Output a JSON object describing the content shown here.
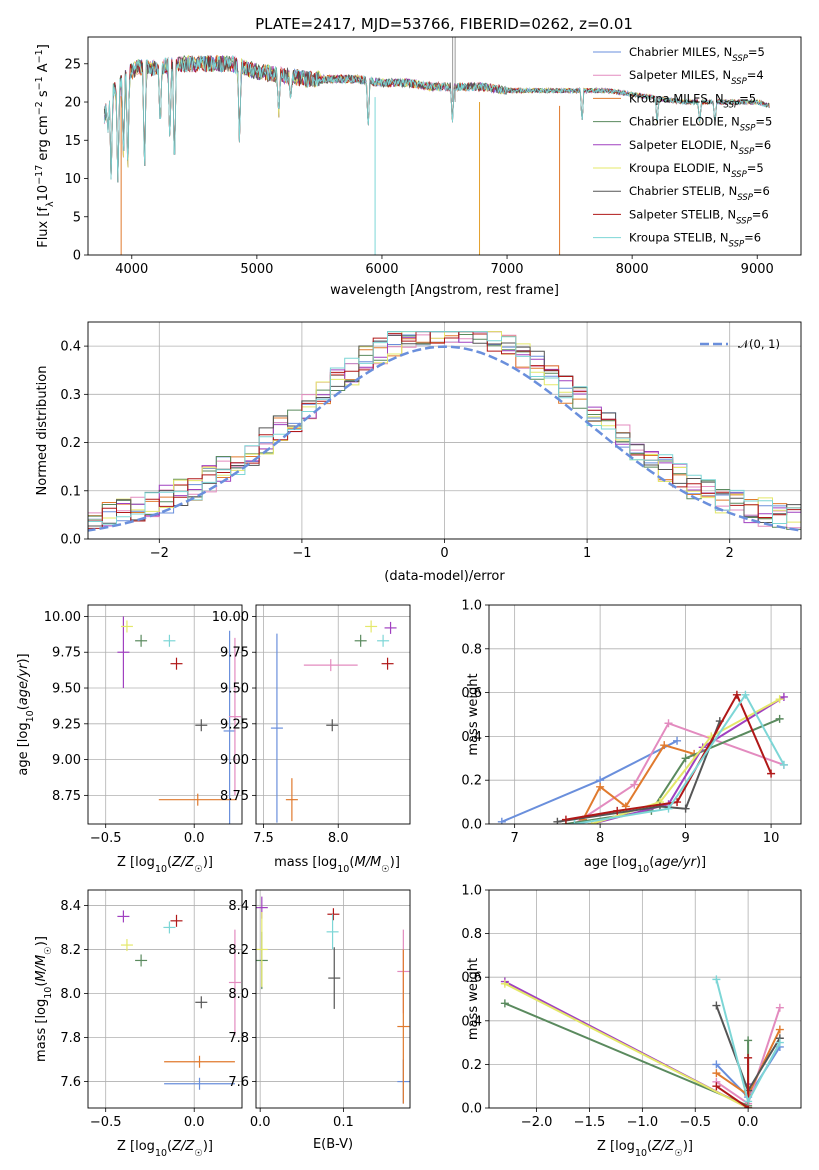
{
  "figure_title": "PLATE=2417, MJD=53766, FIBERID=0262, z=0.01",
  "colors": {
    "Chabrier MILES": "#6a8fdc",
    "Salpeter MILES": "#e38bbf",
    "Kroupa MILES": "#e07a2e",
    "Chabrier ELODIE": "#5a8a5e",
    "Salpeter ELODIE": "#a040c0",
    "Kroupa ELODIE": "#e4e86a",
    "Chabrier STELIB": "#555555",
    "Salpeter STELIB": "#b01818",
    "Kroupa STELIB": "#7dd6d6"
  },
  "chart_data": [
    {
      "id": "spectrum",
      "type": "line",
      "title": "PLATE=2417, MJD=53766, FIBERID=0262, z=0.01",
      "xlabel": "wavelength [Angstrom, rest frame]",
      "ylabel": "Flux [f_λ 10^-17 erg cm^-2 s^-1 A^-1]",
      "xlim": [
        3650,
        9350
      ],
      "ylim": [
        0,
        28.5
      ],
      "xticks": [
        4000,
        5000,
        6000,
        7000,
        8000,
        9000
      ],
      "yticks": [
        0,
        5,
        10,
        15,
        20,
        25
      ],
      "legend_position": "top-right",
      "legend": [
        {
          "base": "Chabrier MILES, N",
          "sub": "SSP",
          "tail": "=5"
        },
        {
          "base": "Salpeter MILES, N",
          "sub": "SSP",
          "tail": "=4"
        },
        {
          "base": "Kroupa MILES, N",
          "sub": "SSP",
          "tail": "=5"
        },
        {
          "base": "Chabrier ELODIE, N",
          "sub": "SSP",
          "tail": "=5"
        },
        {
          "base": "Salpeter ELODIE, N",
          "sub": "SSP",
          "tail": "=6"
        },
        {
          "base": "Kroupa ELODIE, N",
          "sub": "SSP",
          "tail": "=5"
        },
        {
          "base": "Chabrier STELIB, N",
          "sub": "SSP",
          "tail": "=6"
        },
        {
          "base": "Salpeter STELIB, N",
          "sub": "SSP",
          "tail": "=6"
        },
        {
          "base": "Kroupa STELIB, N",
          "sub": "SSP",
          "tail": "=6"
        }
      ],
      "envelope": [
        [
          3780,
          18
        ],
        [
          3820,
          21
        ],
        [
          3880,
          22
        ],
        [
          3950,
          23.5
        ],
        [
          4050,
          24.5
        ],
        [
          4200,
          24.5
        ],
        [
          4400,
          25
        ],
        [
          4600,
          25
        ],
        [
          4800,
          25
        ],
        [
          5000,
          24
        ],
        [
          5200,
          23.5
        ],
        [
          5400,
          23
        ],
        [
          5600,
          23
        ],
        [
          5800,
          23
        ],
        [
          6000,
          22.5
        ],
        [
          6200,
          22.5
        ],
        [
          6400,
          22
        ],
        [
          6600,
          22
        ],
        [
          6800,
          22
        ],
        [
          7000,
          21.5
        ],
        [
          7200,
          21.5
        ],
        [
          7400,
          21.5
        ],
        [
          7600,
          21.5
        ],
        [
          7800,
          21.5
        ],
        [
          8000,
          21
        ],
        [
          8200,
          20.5
        ],
        [
          8400,
          20
        ],
        [
          8600,
          20
        ],
        [
          8800,
          20
        ],
        [
          9000,
          20
        ],
        [
          9100,
          19.5
        ]
      ],
      "absorption_lines": [
        [
          3810,
          16
        ],
        [
          3835,
          9
        ],
        [
          3889,
          8.5
        ],
        [
          3934,
          12
        ],
        [
          3968,
          10.5
        ],
        [
          4102,
          9.5
        ],
        [
          4227,
          16
        ],
        [
          4304,
          14
        ],
        [
          4341,
          10
        ],
        [
          4861,
          14
        ],
        [
          5175,
          18
        ],
        [
          5270,
          20
        ],
        [
          5890,
          16
        ],
        [
          6563,
          17
        ],
        [
          7600,
          17
        ],
        [
          8200,
          17
        ],
        [
          8540,
          17
        ],
        [
          8662,
          17
        ]
      ],
      "spikes": [
        [
          3915,
          0
        ],
        [
          5945,
          0
        ],
        [
          6565,
          28.5
        ],
        [
          6585,
          28.5
        ],
        [
          6780,
          0
        ],
        [
          7420,
          0
        ]
      ]
    },
    {
      "id": "residuals",
      "type": "histogram",
      "xlabel": "(data-model)/error",
      "ylabel": "Normed distribution",
      "xlim": [
        -2.5,
        2.5
      ],
      "ylim": [
        0,
        0.45
      ],
      "xticks": [
        -2,
        -1,
        0,
        1,
        2
      ],
      "yticks": [
        0.0,
        0.1,
        0.2,
        0.3,
        0.4
      ],
      "legend_position": "top-right",
      "reference": {
        "label": "𝒩(0, 1)",
        "mean": 0,
        "sigma": 1,
        "style": "dashed",
        "color": "#6a8fdc"
      },
      "bin_width": 0.1
    },
    {
      "id": "age_vs_Z",
      "type": "errorbar",
      "xlabel": "Z [log10(Z/Z☉)]",
      "ylabel": "age [log10(age/yr)]",
      "xlim": [
        -0.6,
        0.27
      ],
      "ylim": [
        8.55,
        10.08
      ],
      "xticks": [
        -0.5,
        0.0
      ],
      "yticks": [
        8.75,
        9.0,
        9.25,
        9.5,
        9.75,
        10.0
      ],
      "points": [
        {
          "model": "Chabrier MILES",
          "x": 0.2,
          "y": 9.2,
          "xerr": 0.0,
          "yerr": 0.7
        },
        {
          "model": "Salpeter MILES",
          "x": 0.23,
          "y": 9.3,
          "xerr": 0.0,
          "yerr": 0.55
        },
        {
          "model": "Kroupa MILES",
          "x": 0.02,
          "y": 8.72,
          "xerr": 0.22,
          "yerr": 0.0
        },
        {
          "model": "Chabrier ELODIE",
          "x": -0.3,
          "y": 9.83,
          "xerr": 0.0,
          "yerr": 0.0
        },
        {
          "model": "Salpeter ELODIE",
          "x": -0.4,
          "y": 9.75,
          "xerr": 0.0,
          "yerr": 0.25
        },
        {
          "model": "Kroupa ELODIE",
          "x": -0.38,
          "y": 9.93,
          "xerr": 0.0,
          "yerr": 0.0
        },
        {
          "model": "Chabrier STELIB",
          "x": 0.04,
          "y": 9.24,
          "xerr": 0.0,
          "yerr": 0.0
        },
        {
          "model": "Salpeter STELIB",
          "x": -0.1,
          "y": 9.67,
          "xerr": 0.0,
          "yerr": 0.0
        },
        {
          "model": "Kroupa STELIB",
          "x": -0.14,
          "y": 9.83,
          "xerr": 0.0,
          "yerr": 0.0
        }
      ]
    },
    {
      "id": "age_vs_mass",
      "type": "errorbar",
      "xlabel": "mass [log10(M/M☉)]",
      "ylabel": "",
      "xlim": [
        7.45,
        8.48
      ],
      "ylim": [
        8.55,
        10.08
      ],
      "xticks": [
        7.5,
        8.0
      ],
      "yticks": [
        8.75,
        9.0,
        9.25,
        9.5,
        9.75,
        10.0
      ],
      "points": [
        {
          "model": "Chabrier MILES",
          "x": 7.59,
          "y": 9.22,
          "xerr": 0.0,
          "yerr": 0.66
        },
        {
          "model": "Salpeter MILES",
          "x": 7.95,
          "y": 9.66,
          "xerr": 0.18,
          "yerr": 0.0
        },
        {
          "model": "Kroupa MILES",
          "x": 7.69,
          "y": 8.72,
          "xerr": 0.0,
          "yerr": 0.15
        },
        {
          "model": "Chabrier ELODIE",
          "x": 8.15,
          "y": 9.83,
          "xerr": 0.0,
          "yerr": 0.0
        },
        {
          "model": "Salpeter ELODIE",
          "x": 8.35,
          "y": 9.92,
          "xerr": 0.0,
          "yerr": 0.0
        },
        {
          "model": "Kroupa ELODIE",
          "x": 8.22,
          "y": 9.93,
          "xerr": 0.0,
          "yerr": 0.0
        },
        {
          "model": "Chabrier STELIB",
          "x": 7.96,
          "y": 9.24,
          "xerr": 0.0,
          "yerr": 0.0
        },
        {
          "model": "Salpeter STELIB",
          "x": 8.33,
          "y": 9.67,
          "xerr": 0.0,
          "yerr": 0.0
        },
        {
          "model": "Kroupa STELIB",
          "x": 8.3,
          "y": 9.83,
          "xerr": 0.0,
          "yerr": 0.0
        }
      ]
    },
    {
      "id": "weight_vs_age",
      "type": "line",
      "xlabel": "age [log10(age/yr)]",
      "ylabel": "mass weight",
      "xlim": [
        6.7,
        10.35
      ],
      "ylim": [
        0,
        1.0
      ],
      "xticks": [
        7,
        8,
        9,
        10
      ],
      "yticks": [
        0.0,
        0.2,
        0.4,
        0.6,
        0.8,
        1.0
      ],
      "series": [
        {
          "model": "Chabrier MILES",
          "x": [
            6.85,
            8.0,
            8.9
          ],
          "y": [
            0.01,
            0.2,
            0.38
          ]
        },
        {
          "model": "Salpeter MILES",
          "x": [
            7.7,
            8.4,
            8.8,
            10.15
          ],
          "y": [
            0.0,
            0.18,
            0.46,
            0.27
          ]
        },
        {
          "model": "Kroupa MILES",
          "x": [
            7.8,
            8.0,
            8.3,
            8.75,
            9.1
          ],
          "y": [
            0.02,
            0.17,
            0.08,
            0.36,
            0.32
          ]
        },
        {
          "model": "Chabrier ELODIE",
          "x": [
            7.6,
            8.6,
            9.0,
            10.1
          ],
          "y": [
            0.0,
            0.06,
            0.3,
            0.48
          ]
        },
        {
          "model": "Salpeter ELODIE",
          "x": [
            7.9,
            8.8,
            9.2,
            10.15
          ],
          "y": [
            0.0,
            0.09,
            0.35,
            0.58
          ]
        },
        {
          "model": "Kroupa ELODIE",
          "x": [
            7.9,
            8.7,
            9.3,
            10.1
          ],
          "y": [
            0.0,
            0.1,
            0.4,
            0.57
          ]
        },
        {
          "model": "Chabrier STELIB",
          "x": [
            7.5,
            8.7,
            9.0,
            9.4
          ],
          "y": [
            0.01,
            0.08,
            0.07,
            0.47
          ]
        },
        {
          "model": "Salpeter STELIB",
          "x": [
            7.6,
            8.2,
            8.9,
            9.6,
            10.0
          ],
          "y": [
            0.02,
            0.06,
            0.1,
            0.59,
            0.23
          ]
        },
        {
          "model": "Kroupa STELIB",
          "x": [
            7.7,
            8.8,
            9.7,
            10.15
          ],
          "y": [
            0.0,
            0.07,
            0.59,
            0.27
          ]
        }
      ]
    },
    {
      "id": "mass_vs_Z",
      "type": "errorbar",
      "xlabel": "Z [log10(Z/Z☉)]",
      "ylabel": "mass [log10(M/M☉)]",
      "xlim": [
        -0.6,
        0.27
      ],
      "ylim": [
        7.48,
        8.47
      ],
      "xticks": [
        -0.5,
        0.0
      ],
      "yticks": [
        7.6,
        7.8,
        8.0,
        8.2,
        8.4
      ],
      "points": [
        {
          "model": "Chabrier MILES",
          "x": 0.03,
          "y": 7.59,
          "xerr": 0.2,
          "yerr": 0.0
        },
        {
          "model": "Salpeter MILES",
          "x": 0.23,
          "y": 8.05,
          "xerr": 0.0,
          "yerr": 0.24
        },
        {
          "model": "Kroupa MILES",
          "x": 0.03,
          "y": 7.69,
          "xerr": 0.2,
          "yerr": 0.0
        },
        {
          "model": "Chabrier ELODIE",
          "x": -0.3,
          "y": 8.15,
          "xerr": 0.0,
          "yerr": 0.0
        },
        {
          "model": "Salpeter ELODIE",
          "x": -0.4,
          "y": 8.35,
          "xerr": 0.0,
          "yerr": 0.0
        },
        {
          "model": "Kroupa ELODIE",
          "x": -0.38,
          "y": 8.22,
          "xerr": 0.0,
          "yerr": 0.0
        },
        {
          "model": "Chabrier STELIB",
          "x": 0.04,
          "y": 7.96,
          "xerr": 0.0,
          "yerr": 0.0
        },
        {
          "model": "Salpeter STELIB",
          "x": -0.1,
          "y": 8.33,
          "xerr": 0.0,
          "yerr": 0.0
        },
        {
          "model": "Kroupa STELIB",
          "x": -0.14,
          "y": 8.3,
          "xerr": 0.0,
          "yerr": 0.0
        }
      ]
    },
    {
      "id": "mass_vs_ebv",
      "type": "errorbar",
      "xlabel": "E(B-V)",
      "ylabel": "",
      "xlim": [
        -0.005,
        0.18
      ],
      "ylim": [
        7.48,
        8.47
      ],
      "xticks": [
        0.0,
        0.1
      ],
      "yticks": [
        7.6,
        7.8,
        8.0,
        8.2,
        8.4
      ],
      "points": [
        {
          "model": "Chabrier MILES",
          "x": 0.172,
          "y": 7.6,
          "xerr": 0.0,
          "yerr": 0.1
        },
        {
          "model": "Salpeter MILES",
          "x": 0.172,
          "y": 8.1,
          "xerr": 0.0,
          "yerr": 0.19
        },
        {
          "model": "Kroupa MILES",
          "x": 0.172,
          "y": 7.85,
          "xerr": 0.0,
          "yerr": 0.35
        },
        {
          "model": "Chabrier ELODIE",
          "x": 0.002,
          "y": 8.15,
          "xerr": 0.0,
          "yerr": 0.13
        },
        {
          "model": "Salpeter ELODIE",
          "x": 0.002,
          "y": 8.39,
          "xerr": 0.0,
          "yerr": 0.05
        },
        {
          "model": "Kroupa ELODIE",
          "x": 0.002,
          "y": 8.2,
          "xerr": 0.0,
          "yerr": 0.17
        },
        {
          "model": "Chabrier STELIB",
          "x": 0.089,
          "y": 8.07,
          "xerr": 0.0,
          "yerr": 0.14
        },
        {
          "model": "Salpeter STELIB",
          "x": 0.088,
          "y": 8.36,
          "xerr": 0.0,
          "yerr": 0.02
        },
        {
          "model": "Kroupa STELIB",
          "x": 0.087,
          "y": 8.28,
          "xerr": 0.0,
          "yerr": 0.08
        }
      ]
    },
    {
      "id": "weight_vs_Z",
      "type": "line",
      "xlabel": "Z [log10(Z/Z☉)]",
      "ylabel": "mass weight",
      "xlim": [
        -2.45,
        0.5
      ],
      "ylim": [
        0,
        1.0
      ],
      "xticks": [
        -2.0,
        -1.5,
        -1.0,
        -0.5,
        0.0
      ],
      "yticks": [
        0.0,
        0.2,
        0.4,
        0.6,
        0.8,
        1.0
      ],
      "series": [
        {
          "model": "Chabrier MILES",
          "x": [
            -0.3,
            0.0,
            0.3
          ],
          "y": [
            0.2,
            0.05,
            0.28
          ]
        },
        {
          "model": "Salpeter MILES",
          "x": [
            -0.3,
            0.0,
            0.3
          ],
          "y": [
            0.12,
            0.02,
            0.46
          ]
        },
        {
          "model": "Kroupa MILES",
          "x": [
            -0.3,
            0.0,
            0.3
          ],
          "y": [
            0.16,
            0.06,
            0.36
          ]
        },
        {
          "model": "Chabrier ELODIE",
          "x": [
            -2.3,
            0.0,
            0.0
          ],
          "y": [
            0.48,
            0.01,
            0.31
          ]
        },
        {
          "model": "Salpeter ELODIE",
          "x": [
            -2.3,
            0.0,
            0.0
          ],
          "y": [
            0.58,
            0.0,
            0.11
          ]
        },
        {
          "model": "Kroupa ELODIE",
          "x": [
            -2.3,
            0.0,
            0.0
          ],
          "y": [
            0.57,
            0.0,
            0.1
          ]
        },
        {
          "model": "Chabrier STELIB",
          "x": [
            -0.3,
            0.0,
            0.3
          ],
          "y": [
            0.47,
            0.08,
            0.32
          ]
        },
        {
          "model": "Salpeter STELIB",
          "x": [
            -0.3,
            0.0,
            0.0
          ],
          "y": [
            0.1,
            0.0,
            0.23
          ]
        },
        {
          "model": "Kroupa STELIB",
          "x": [
            -0.3,
            0.0,
            0.3
          ],
          "y": [
            0.59,
            0.03,
            0.3
          ]
        }
      ]
    }
  ]
}
